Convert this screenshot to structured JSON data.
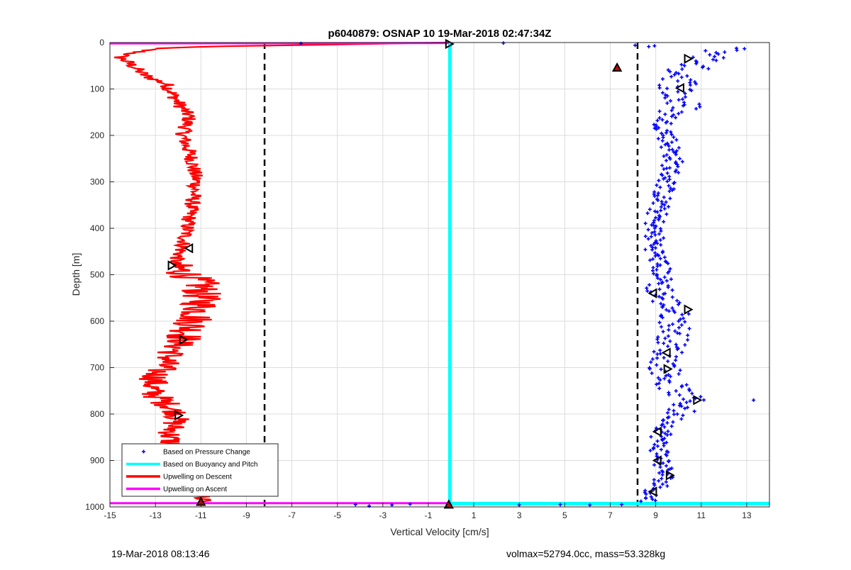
{
  "chart_data": {
    "type": "scatter",
    "title": "p6040879: OSNAP 10 19-Mar-2018 02:47:34Z",
    "xlabel": "Vertical Velocity [cm/s]",
    "ylabel": "Depth [m]",
    "xlim": [
      -15,
      14
    ],
    "ylim": [
      0,
      1000
    ],
    "y_reversed": true,
    "grid": true,
    "legend_position": "bottom-left",
    "xticks": [
      -15,
      -13,
      -11,
      -9,
      -7,
      -5,
      -3,
      -1,
      1,
      3,
      5,
      7,
      9,
      11,
      13
    ],
    "yticks": [
      0,
      100,
      200,
      300,
      400,
      500,
      600,
      700,
      800,
      900,
      1000
    ],
    "legend": [
      {
        "label": "Based on Pressure Change",
        "color": "#0000ff",
        "style": "marker"
      },
      {
        "label": "Based on Buoyancy and Pitch",
        "color": "#00ffff",
        "style": "line"
      },
      {
        "label": "Upwelling on Descent",
        "color": "#ff0000",
        "style": "line"
      },
      {
        "label": "Upwelling on Ascent",
        "color": "#ff00ff",
        "style": "line"
      }
    ],
    "reference_lines": {
      "x": [
        -8.2,
        8.2
      ],
      "style": "dashed",
      "color": "#000000"
    },
    "series": [
      {
        "name": "Based on Pressure Change",
        "color": "#0000ff",
        "type": "scatter",
        "profile": [
          [
            12.3,
            10
          ],
          [
            10.3,
            60
          ],
          [
            9.9,
            110
          ],
          [
            10.2,
            140
          ],
          [
            9.3,
            170
          ],
          [
            9.5,
            200
          ],
          [
            9.8,
            250
          ],
          [
            9.5,
            300
          ],
          [
            9.2,
            340
          ],
          [
            8.9,
            400
          ],
          [
            9.0,
            450
          ],
          [
            9.3,
            500
          ],
          [
            9.2,
            540
          ],
          [
            9.8,
            580
          ],
          [
            9.9,
            620
          ],
          [
            9.6,
            660
          ],
          [
            9.4,
            700
          ],
          [
            9.7,
            740
          ],
          [
            10.5,
            770
          ],
          [
            9.6,
            820
          ],
          [
            9.1,
            860
          ],
          [
            9.3,
            900
          ],
          [
            9.4,
            940
          ],
          [
            8.7,
            980
          ]
        ],
        "scatter_x": [
          -6.6,
          2.3,
          -4.2,
          -3.6,
          -2.6,
          -1.8,
          3.0,
          4.8,
          6.1,
          7.5,
          13.3
        ],
        "scatter_y": [
          2,
          1,
          995,
          998,
          996,
          994,
          996,
          995,
          996,
          995,
          770
        ]
      },
      {
        "name": "Based on Buoyancy and Pitch",
        "color": "#00ffff",
        "type": "line",
        "x": [
          -0.05,
          -0.05,
          14
        ],
        "y": [
          0,
          993,
          993
        ]
      },
      {
        "name": "Upwelling on Descent",
        "color": "#ff0000",
        "type": "line",
        "profile": [
          [
            -0.1,
            0
          ],
          [
            -6.0,
            5
          ],
          [
            -10.0,
            8
          ],
          [
            -13.0,
            12
          ],
          [
            -14.6,
            30
          ],
          [
            -14.0,
            50
          ],
          [
            -13.5,
            70
          ],
          [
            -12.5,
            90
          ],
          [
            -12.0,
            130
          ],
          [
            -11.5,
            160
          ],
          [
            -11.8,
            200
          ],
          [
            -11.4,
            250
          ],
          [
            -11.2,
            300
          ],
          [
            -11.4,
            350
          ],
          [
            -11.6,
            400
          ],
          [
            -11.8,
            440
          ],
          [
            -12.2,
            480
          ],
          [
            -11.0,
            520
          ],
          [
            -11.0,
            570
          ],
          [
            -11.5,
            620
          ],
          [
            -12.3,
            670
          ],
          [
            -13.0,
            720
          ],
          [
            -13.2,
            750
          ],
          [
            -12.0,
            800
          ],
          [
            -12.4,
            850
          ],
          [
            -12.0,
            900
          ],
          [
            -11.5,
            950
          ],
          [
            -11.0,
            990
          ]
        ]
      },
      {
        "name": "Upwelling on Ascent",
        "color": "#ff00ff",
        "type": "line",
        "x": [
          -15,
          -0.1
        ],
        "y": [
          2,
          1
        ],
        "x2": [
          -15,
          -0.1
        ],
        "y2": [
          992,
          992
        ]
      }
    ],
    "markers": [
      {
        "x": -0.1,
        "y": 3,
        "shape": "right"
      },
      {
        "x": -0.1,
        "y": 996,
        "shape": "up"
      },
      {
        "x": 7.3,
        "y": 55,
        "shape": "up"
      },
      {
        "x": -11.0,
        "y": 990,
        "shape": "up"
      },
      {
        "x": 10.4,
        "y": 35,
        "shape": "right"
      },
      {
        "x": 10.1,
        "y": 98,
        "shape": "left"
      },
      {
        "x": -11.5,
        "y": 443,
        "shape": "left"
      },
      {
        "x": -12.3,
        "y": 480,
        "shape": "right"
      },
      {
        "x": 8.9,
        "y": 540,
        "shape": "left"
      },
      {
        "x": 10.4,
        "y": 575,
        "shape": "right"
      },
      {
        "x": -11.8,
        "y": 640,
        "shape": "right"
      },
      {
        "x": 9.5,
        "y": 668,
        "shape": "left"
      },
      {
        "x": 9.5,
        "y": 703,
        "shape": "right"
      },
      {
        "x": 10.8,
        "y": 770,
        "shape": "right"
      },
      {
        "x": -12.0,
        "y": 803,
        "shape": "right"
      },
      {
        "x": 9.1,
        "y": 838,
        "shape": "left"
      },
      {
        "x": 9.1,
        "y": 900,
        "shape": "left"
      },
      {
        "x": -11.7,
        "y": 923,
        "shape": "left"
      },
      {
        "x": 9.6,
        "y": 932,
        "shape": "right"
      },
      {
        "x": 8.9,
        "y": 967,
        "shape": "left"
      }
    ]
  },
  "footer": {
    "left": "19-Mar-2018 08:13:46",
    "right": "volmax=52794.0cc, mass=53.328kg"
  }
}
